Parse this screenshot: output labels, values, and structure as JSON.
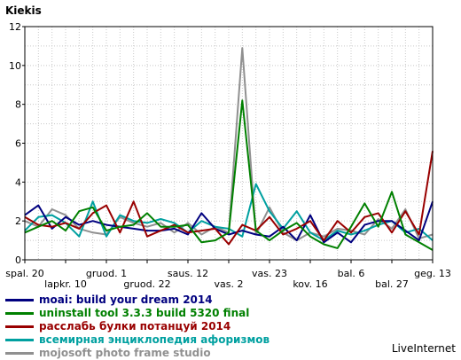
{
  "chart_data": {
    "type": "line",
    "ylabel": "Kiekis",
    "ylim": [
      0,
      12
    ],
    "yticks": [
      0,
      2,
      4,
      6,
      8,
      10,
      12
    ],
    "grid": true,
    "legend_position": "bottom-left",
    "xtick_labels": [
      {
        "index": 0,
        "label": "spal. 20",
        "row": 0
      },
      {
        "index": 3,
        "label": "lapkr. 10",
        "row": 1
      },
      {
        "index": 6,
        "label": "gruod. 1",
        "row": 0
      },
      {
        "index": 9,
        "label": "gruod. 22",
        "row": 1
      },
      {
        "index": 12,
        "label": "saus. 12",
        "row": 0
      },
      {
        "index": 15,
        "label": "vas. 2",
        "row": 1
      },
      {
        "index": 18,
        "label": "vas. 23",
        "row": 0
      },
      {
        "index": 21,
        "label": "kov. 16",
        "row": 1
      },
      {
        "index": 24,
        "label": "bal. 6",
        "row": 0
      },
      {
        "index": 27,
        "label": "bal. 27",
        "row": 1
      },
      {
        "index": 30,
        "label": "geg. 13",
        "row": 0
      }
    ],
    "series": [
      {
        "name": "moai: build your dream 2014",
        "color": "#00007f",
        "values": [
          2.3,
          2.8,
          1.6,
          2.2,
          1.8,
          2.0,
          1.8,
          1.7,
          1.6,
          1.5,
          1.5,
          1.6,
          1.3,
          2.4,
          1.6,
          1.3,
          1.5,
          1.3,
          1.2,
          1.7,
          1.0,
          2.3,
          0.9,
          1.4,
          0.9,
          1.8,
          2.0,
          2.0,
          1.5,
          1.0,
          3.0
        ]
      },
      {
        "name": "uninstall tool 3.3.3 build 5320 final",
        "color": "#008000",
        "values": [
          1.4,
          1.7,
          2.0,
          1.5,
          2.5,
          2.7,
          1.5,
          1.7,
          1.8,
          2.4,
          1.7,
          1.7,
          1.8,
          0.9,
          1.0,
          1.4,
          8.2,
          1.5,
          1.0,
          1.5,
          1.9,
          1.2,
          0.8,
          0.6,
          1.7,
          2.9,
          1.7,
          3.5,
          1.3,
          0.9,
          0.5
        ]
      },
      {
        "name": "расслабь булки потанцуй 2014",
        "color": "#990000",
        "values": [
          2.2,
          1.8,
          1.7,
          1.9,
          1.6,
          2.4,
          2.8,
          1.4,
          3.0,
          1.2,
          1.5,
          1.8,
          1.4,
          1.5,
          1.6,
          0.8,
          1.8,
          1.5,
          2.2,
          1.3,
          1.6,
          2.0,
          1.0,
          2.0,
          1.4,
          2.2,
          2.4,
          1.4,
          2.5,
          1.3,
          5.6
        ]
      },
      {
        "name": "всемирная энциклопедия афоризмов",
        "color": "#00a0a0",
        "values": [
          1.5,
          2.2,
          2.3,
          1.9,
          1.2,
          3.0,
          1.2,
          2.3,
          2.0,
          1.9,
          2.1,
          1.9,
          1.4,
          2.0,
          1.7,
          1.6,
          1.2,
          3.9,
          2.5,
          1.6,
          2.5,
          1.4,
          1.0,
          1.5,
          1.3,
          1.5,
          1.8,
          2.0,
          1.4,
          1.6,
          1.0
        ]
      },
      {
        "name": "mojosoft photo frame studio",
        "color": "#909090",
        "values": [
          2.0,
          1.7,
          2.6,
          2.3,
          1.6,
          1.4,
          1.3,
          2.2,
          1.9,
          1.7,
          1.9,
          1.4,
          1.9,
          1.3,
          1.7,
          1.4,
          10.9,
          1.3,
          2.7,
          1.4,
          1.0,
          1.4,
          1.2,
          1.6,
          1.5,
          1.3,
          2.1,
          1.6,
          2.6,
          1.1,
          1.3
        ]
      }
    ]
  },
  "footer": {
    "credit": "LiveInternet"
  }
}
